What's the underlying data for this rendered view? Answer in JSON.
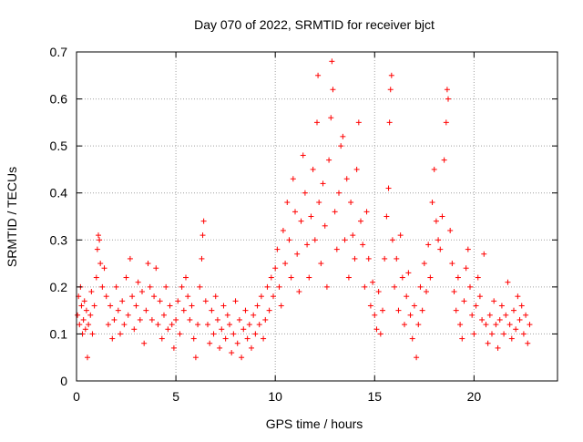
{
  "chart_data": {
    "type": "scatter",
    "title": "Day 070 of 2022, SRMTID for receiver bjct",
    "xlabel": "GPS time / hours",
    "ylabel": "SRMTID / TECUs",
    "xlim": [
      0,
      24.2
    ],
    "ylim": [
      0,
      0.7
    ],
    "xticks": [
      0,
      5,
      10,
      15,
      20
    ],
    "yticks": [
      0,
      0.1,
      0.2,
      0.3,
      0.4,
      0.5,
      0.6,
      0.7
    ],
    "xtick_labels": [
      "0",
      "5",
      "10",
      "15",
      "20"
    ],
    "ytick_labels": [
      "0",
      "0.1",
      "0.2",
      "0.3",
      "0.4",
      "0.5",
      "0.6",
      "0.7"
    ],
    "grid": true,
    "marker": "+",
    "color": "#ff0000",
    "series": [
      {
        "name": "SRMTID",
        "points": [
          [
            0.05,
            0.14
          ],
          [
            0.1,
            0.18
          ],
          [
            0.15,
            0.12
          ],
          [
            0.2,
            0.2
          ],
          [
            0.25,
            0.16
          ],
          [
            0.3,
            0.1
          ],
          [
            0.35,
            0.13
          ],
          [
            0.4,
            0.17
          ],
          [
            0.45,
            0.11
          ],
          [
            0.5,
            0.15
          ],
          [
            0.55,
            0.05
          ],
          [
            0.6,
            0.12
          ],
          [
            0.7,
            0.14
          ],
          [
            0.75,
            0.19
          ],
          [
            0.8,
            0.1
          ],
          [
            0.9,
            0.16
          ],
          [
            1.0,
            0.22
          ],
          [
            1.05,
            0.28
          ],
          [
            1.1,
            0.31
          ],
          [
            1.15,
            0.3
          ],
          [
            1.2,
            0.25
          ],
          [
            1.3,
            0.2
          ],
          [
            1.4,
            0.24
          ],
          [
            1.5,
            0.18
          ],
          [
            1.6,
            0.12
          ],
          [
            1.7,
            0.16
          ],
          [
            1.8,
            0.09
          ],
          [
            1.9,
            0.13
          ],
          [
            2.0,
            0.2
          ],
          [
            2.1,
            0.15
          ],
          [
            2.2,
            0.1
          ],
          [
            2.3,
            0.17
          ],
          [
            2.4,
            0.12
          ],
          [
            2.5,
            0.22
          ],
          [
            2.6,
            0.14
          ],
          [
            2.7,
            0.26
          ],
          [
            2.8,
            0.18
          ],
          [
            2.9,
            0.11
          ],
          [
            3.0,
            0.16
          ],
          [
            3.1,
            0.21
          ],
          [
            3.2,
            0.13
          ],
          [
            3.3,
            0.19
          ],
          [
            3.4,
            0.08
          ],
          [
            3.5,
            0.15
          ],
          [
            3.6,
            0.25
          ],
          [
            3.7,
            0.2
          ],
          [
            3.8,
            0.13
          ],
          [
            3.9,
            0.18
          ],
          [
            4.0,
            0.24
          ],
          [
            4.1,
            0.12
          ],
          [
            4.2,
            0.17
          ],
          [
            4.3,
            0.09
          ],
          [
            4.4,
            0.14
          ],
          [
            4.5,
            0.2
          ],
          [
            4.6,
            0.11
          ],
          [
            4.7,
            0.16
          ],
          [
            4.8,
            0.12
          ],
          [
            4.9,
            0.07
          ],
          [
            5.0,
            0.13
          ],
          [
            5.1,
            0.17
          ],
          [
            5.2,
            0.1
          ],
          [
            5.3,
            0.2
          ],
          [
            5.4,
            0.15
          ],
          [
            5.5,
            0.22
          ],
          [
            5.6,
            0.18
          ],
          [
            5.7,
            0.13
          ],
          [
            5.8,
            0.16
          ],
          [
            5.9,
            0.09
          ],
          [
            6.0,
            0.05
          ],
          [
            6.1,
            0.12
          ],
          [
            6.2,
            0.2
          ],
          [
            6.3,
            0.26
          ],
          [
            6.35,
            0.31
          ],
          [
            6.4,
            0.34
          ],
          [
            6.5,
            0.17
          ],
          [
            6.6,
            0.12
          ],
          [
            6.7,
            0.08
          ],
          [
            6.8,
            0.15
          ],
          [
            6.9,
            0.1
          ],
          [
            7.0,
            0.18
          ],
          [
            7.1,
            0.13
          ],
          [
            7.2,
            0.07
          ],
          [
            7.3,
            0.11
          ],
          [
            7.4,
            0.16
          ],
          [
            7.5,
            0.09
          ],
          [
            7.6,
            0.14
          ],
          [
            7.7,
            0.12
          ],
          [
            7.8,
            0.06
          ],
          [
            7.9,
            0.1
          ],
          [
            8.0,
            0.17
          ],
          [
            8.1,
            0.08
          ],
          [
            8.2,
            0.13
          ],
          [
            8.3,
            0.05
          ],
          [
            8.4,
            0.11
          ],
          [
            8.5,
            0.15
          ],
          [
            8.6,
            0.09
          ],
          [
            8.7,
            0.12
          ],
          [
            8.8,
            0.07
          ],
          [
            8.9,
            0.14
          ],
          [
            9.0,
            0.1
          ],
          [
            9.1,
            0.16
          ],
          [
            9.2,
            0.12
          ],
          [
            9.3,
            0.18
          ],
          [
            9.4,
            0.09
          ],
          [
            9.5,
            0.13
          ],
          [
            9.6,
            0.2
          ],
          [
            9.7,
            0.15
          ],
          [
            9.8,
            0.22
          ],
          [
            9.9,
            0.18
          ],
          [
            10.0,
            0.24
          ],
          [
            10.1,
            0.28
          ],
          [
            10.2,
            0.2
          ],
          [
            10.3,
            0.16
          ],
          [
            10.4,
            0.32
          ],
          [
            10.5,
            0.25
          ],
          [
            10.6,
            0.38
          ],
          [
            10.7,
            0.3
          ],
          [
            10.8,
            0.22
          ],
          [
            10.9,
            0.43
          ],
          [
            11.0,
            0.36
          ],
          [
            11.1,
            0.27
          ],
          [
            11.2,
            0.19
          ],
          [
            11.3,
            0.34
          ],
          [
            11.4,
            0.48
          ],
          [
            11.5,
            0.4
          ],
          [
            11.6,
            0.29
          ],
          [
            11.7,
            0.22
          ],
          [
            11.8,
            0.35
          ],
          [
            11.9,
            0.45
          ],
          [
            12.0,
            0.3
          ],
          [
            12.1,
            0.55
          ],
          [
            12.15,
            0.65
          ],
          [
            12.2,
            0.38
          ],
          [
            12.3,
            0.25
          ],
          [
            12.4,
            0.42
          ],
          [
            12.5,
            0.33
          ],
          [
            12.6,
            0.2
          ],
          [
            12.7,
            0.47
          ],
          [
            12.8,
            0.56
          ],
          [
            12.85,
            0.68
          ],
          [
            12.9,
            0.62
          ],
          [
            13.0,
            0.36
          ],
          [
            13.1,
            0.28
          ],
          [
            13.2,
            0.4
          ],
          [
            13.3,
            0.5
          ],
          [
            13.4,
            0.52
          ],
          [
            13.5,
            0.3
          ],
          [
            13.6,
            0.43
          ],
          [
            13.7,
            0.22
          ],
          [
            13.8,
            0.38
          ],
          [
            13.9,
            0.31
          ],
          [
            14.0,
            0.26
          ],
          [
            14.1,
            0.45
          ],
          [
            14.2,
            0.55
          ],
          [
            14.3,
            0.34
          ],
          [
            14.4,
            0.29
          ],
          [
            14.5,
            0.2
          ],
          [
            14.6,
            0.36
          ],
          [
            14.7,
            0.26
          ],
          [
            14.8,
            0.16
          ],
          [
            14.9,
            0.21
          ],
          [
            15.0,
            0.14
          ],
          [
            15.1,
            0.11
          ],
          [
            15.2,
            0.19
          ],
          [
            15.3,
            0.1
          ],
          [
            15.4,
            0.15
          ],
          [
            15.5,
            0.26
          ],
          [
            15.6,
            0.35
          ],
          [
            15.7,
            0.41
          ],
          [
            15.75,
            0.55
          ],
          [
            15.8,
            0.62
          ],
          [
            15.85,
            0.65
          ],
          [
            15.9,
            0.3
          ],
          [
            16.0,
            0.2
          ],
          [
            16.1,
            0.26
          ],
          [
            16.2,
            0.15
          ],
          [
            16.3,
            0.31
          ],
          [
            16.4,
            0.22
          ],
          [
            16.5,
            0.12
          ],
          [
            16.6,
            0.18
          ],
          [
            16.7,
            0.23
          ],
          [
            16.8,
            0.14
          ],
          [
            16.9,
            0.09
          ],
          [
            17.0,
            0.16
          ],
          [
            17.1,
            0.05
          ],
          [
            17.2,
            0.12
          ],
          [
            17.3,
            0.2
          ],
          [
            17.4,
            0.15
          ],
          [
            17.5,
            0.25
          ],
          [
            17.6,
            0.19
          ],
          [
            17.7,
            0.29
          ],
          [
            17.8,
            0.22
          ],
          [
            17.9,
            0.38
          ],
          [
            18.0,
            0.45
          ],
          [
            18.1,
            0.34
          ],
          [
            18.2,
            0.3
          ],
          [
            18.3,
            0.28
          ],
          [
            18.4,
            0.35
          ],
          [
            18.5,
            0.47
          ],
          [
            18.6,
            0.55
          ],
          [
            18.65,
            0.62
          ],
          [
            18.7,
            0.6
          ],
          [
            18.8,
            0.32
          ],
          [
            18.9,
            0.25
          ],
          [
            19.0,
            0.19
          ],
          [
            19.1,
            0.15
          ],
          [
            19.2,
            0.22
          ],
          [
            19.3,
            0.12
          ],
          [
            19.4,
            0.09
          ],
          [
            19.5,
            0.17
          ],
          [
            19.6,
            0.24
          ],
          [
            19.7,
            0.28
          ],
          [
            19.8,
            0.2
          ],
          [
            19.9,
            0.14
          ],
          [
            20.0,
            0.1
          ],
          [
            20.1,
            0.16
          ],
          [
            20.2,
            0.22
          ],
          [
            20.3,
            0.18
          ],
          [
            20.4,
            0.13
          ],
          [
            20.5,
            0.27
          ],
          [
            20.6,
            0.12
          ],
          [
            20.7,
            0.08
          ],
          [
            20.8,
            0.14
          ],
          [
            20.9,
            0.1
          ],
          [
            21.0,
            0.17
          ],
          [
            21.1,
            0.12
          ],
          [
            21.2,
            0.07
          ],
          [
            21.3,
            0.13
          ],
          [
            21.4,
            0.16
          ],
          [
            21.5,
            0.1
          ],
          [
            21.6,
            0.14
          ],
          [
            21.7,
            0.21
          ],
          [
            21.8,
            0.12
          ],
          [
            21.9,
            0.09
          ],
          [
            22.0,
            0.15
          ],
          [
            22.1,
            0.11
          ],
          [
            22.2,
            0.18
          ],
          [
            22.3,
            0.13
          ],
          [
            22.4,
            0.16
          ],
          [
            22.5,
            0.1
          ],
          [
            22.6,
            0.14
          ],
          [
            22.7,
            0.08
          ],
          [
            22.8,
            0.12
          ]
        ]
      }
    ]
  }
}
